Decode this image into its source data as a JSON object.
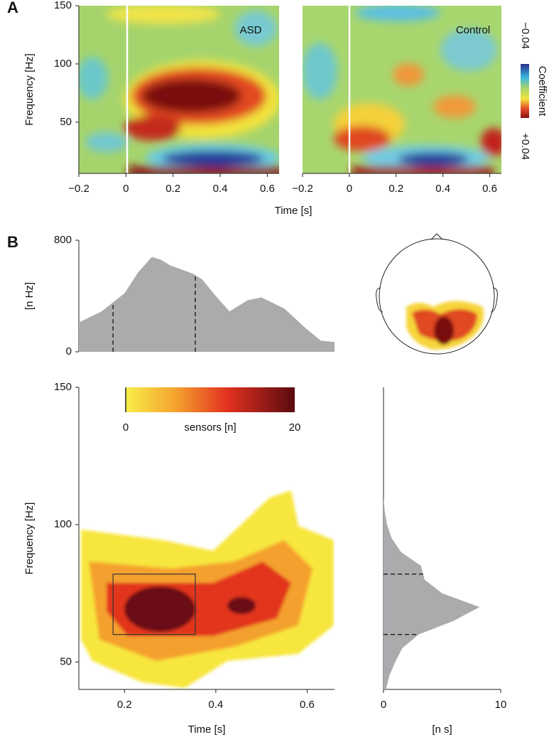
{
  "chart_data": [
    {
      "type": "heatmap",
      "panel_label": "A",
      "title": "ASD",
      "x_label": "Time [s]",
      "y_label": "Frequency [Hz]",
      "xlim": [
        -0.2,
        0.65
      ],
      "ylim": [
        6,
        150
      ],
      "xticks": [
        {
          "value": -0.2,
          "label": "−0.2"
        },
        0,
        0.2,
        0.4,
        0.6
      ],
      "yticks": [
        50,
        100,
        150
      ],
      "colorbar_label": "Coefficient",
      "colorbar_ticks": [
        {
          "value": -0.04,
          "label": "−0.04"
        },
        {
          "value": 0.04,
          "label": "+0.04"
        }
      ]
    },
    {
      "type": "heatmap",
      "title": "Control",
      "xlim": [
        -0.2,
        0.65
      ],
      "ylim": [
        6,
        150
      ],
      "xticks": [
        {
          "value": -0.2,
          "label": "−0.2"
        },
        0,
        0.2,
        0.4,
        0.6
      ]
    },
    {
      "type": "area",
      "panel_label": "B",
      "y_label": "[n Hz]",
      "xlim": [
        0.1,
        0.66
      ],
      "ylim": [
        0,
        800
      ],
      "yticks": [
        0,
        800
      ],
      "color": "#aaabad",
      "x": [
        0.1,
        0.15,
        0.2,
        0.23,
        0.26,
        0.28,
        0.3,
        0.35,
        0.37,
        0.4,
        0.43,
        0.47,
        0.5,
        0.55,
        0.6,
        0.63,
        0.66
      ],
      "values": [
        210,
        290,
        420,
        570,
        680,
        660,
        620,
        560,
        520,
        400,
        290,
        370,
        390,
        310,
        160,
        80,
        70
      ],
      "dashed_x": [
        0.175,
        0.355
      ]
    },
    {
      "type": "heatmap",
      "x_label": "Time [s]",
      "y_label": "Frequency [Hz]",
      "xlim": [
        0.1,
        0.66
      ],
      "ylim": [
        40,
        150
      ],
      "xticks": [
        0.2,
        0.4,
        0.6
      ],
      "yticks": [
        50,
        100,
        150
      ],
      "colorbar_label": "sensors [n]",
      "colorbar_ticks": [
        0,
        20
      ],
      "box_x": [
        0.175,
        0.355
      ],
      "box_y": [
        60,
        82
      ]
    },
    {
      "type": "hprofile",
      "x_label": "[n s]",
      "xlim": [
        0,
        10
      ],
      "ylim": [
        40,
        150
      ],
      "xticks": [
        0,
        10
      ],
      "color": "#aaabad",
      "y": [
        40,
        45,
        50,
        55,
        60,
        65,
        70,
        75,
        80,
        85,
        90,
        95,
        100,
        105,
        110
      ],
      "values": [
        0.2,
        0.5,
        1,
        1.6,
        3,
        6,
        8.2,
        5,
        3.5,
        3.2,
        1.5,
        0.7,
        0.3,
        0.1,
        0
      ],
      "dashed_y": [
        60,
        82
      ]
    }
  ]
}
